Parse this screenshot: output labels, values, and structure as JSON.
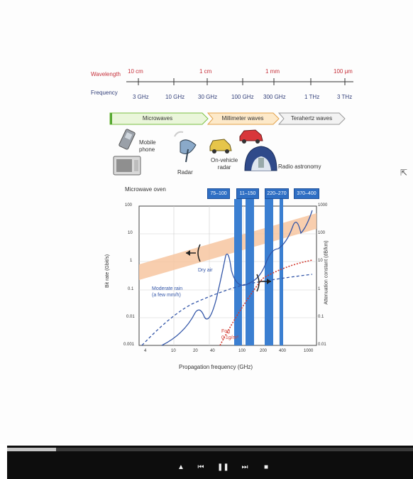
{
  "figure": {
    "wavelength_label": "Wavelength",
    "frequency_label": "Frequency",
    "wavelength_ticks": [
      "10 cm",
      "1 cm",
      "1 mm",
      "100 μm"
    ],
    "frequency_ticks": [
      "3 GHz",
      "10 GHz",
      "30 GHz",
      "100 GHz",
      "300 GHz",
      "1 THz",
      "3 THz"
    ],
    "bands": [
      "Microwaves",
      "Millimeter waves",
      "Terahertz waves"
    ],
    "applications": {
      "mobile_phone": "Mobile\nphone",
      "microwave_oven": "Microwave oven",
      "radar": "Radar",
      "vehicle_radar": "On-vehicle\nradar",
      "radio_astronomy": "Radio astronomy"
    },
    "window_labels": [
      "75–100",
      "11–150",
      "220–270",
      "370–400"
    ],
    "chart": {
      "xlabel": "Propagation frequency (GHz)",
      "ylabel_left": "Bit rate (Gbit/s)",
      "ylabel_right": "Attenuation constant (dB/km)",
      "x_ticks": [
        "4",
        "10",
        "20",
        "40",
        "100",
        "200",
        "400",
        "1000"
      ],
      "y_left_ticks": [
        "100",
        "10",
        "1",
        "0.1",
        "0.01",
        "0.001"
      ],
      "y_right_ticks": [
        "1000",
        "100",
        "10",
        "1",
        "0.1",
        "0.01"
      ],
      "annotations": {
        "moderate_rain": "Moderate rain\n(a few mm/h)",
        "dry_air": "Dry air",
        "fog": "Fog\n0.1g/m³"
      }
    }
  },
  "player": {
    "progress_fraction": 0.12,
    "controls": {
      "eject": "▲",
      "prev": "⏮",
      "pause": "❚❚",
      "next": "⏭",
      "stop": "■"
    }
  }
}
